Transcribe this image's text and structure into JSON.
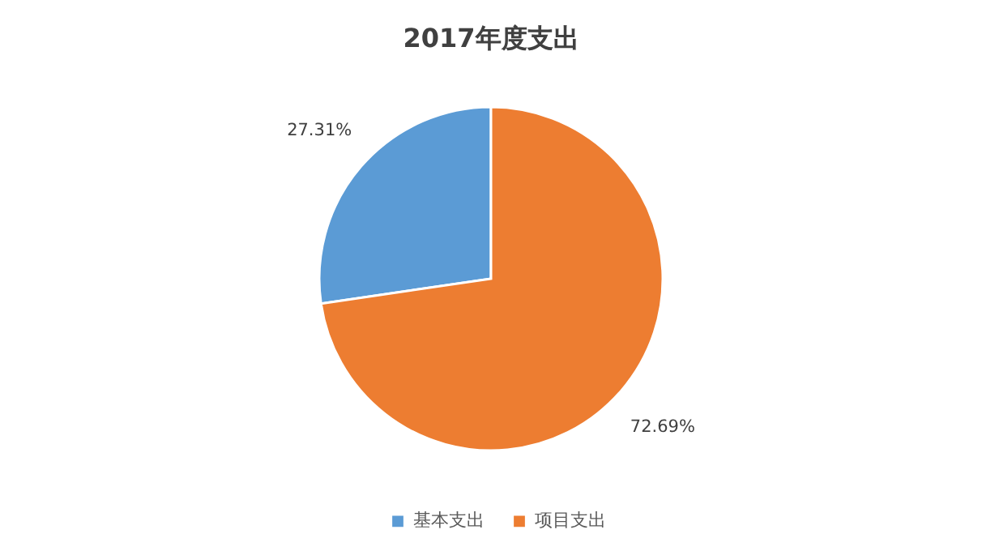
{
  "chart_data": {
    "type": "pie",
    "title": "2017年度支出",
    "categories": [
      "基本支出",
      "项目支出"
    ],
    "values": [
      27.31,
      72.69
    ],
    "colors": [
      "#5b9bd5",
      "#ed7d31"
    ],
    "value_labels": [
      "27.31%",
      "72.69%"
    ],
    "legend": "bottom"
  }
}
